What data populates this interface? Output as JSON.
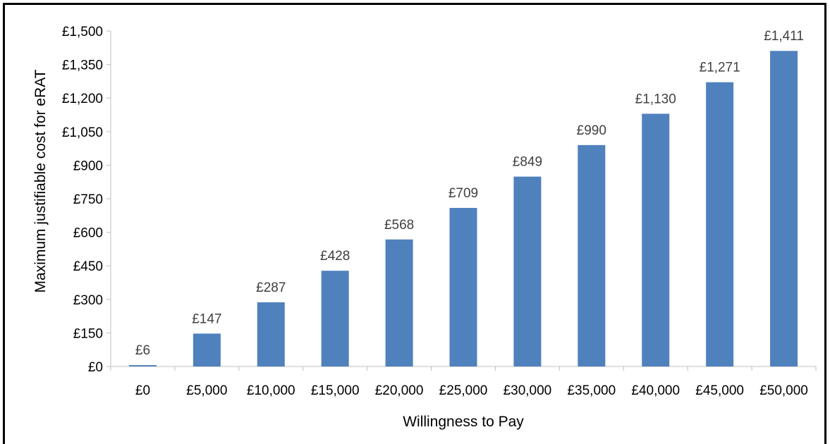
{
  "chart_data": {
    "type": "bar",
    "title": "",
    "xlabel": "Willingness to Pay",
    "ylabel": "Maximum justifiable cost for eRAT",
    "categories": [
      "£0",
      "£5,000",
      "£10,000",
      "£15,000",
      "£20,000",
      "£25,000",
      "£30,000",
      "£35,000",
      "£40,000",
      "£45,000",
      "£50,000"
    ],
    "values": [
      6,
      147,
      287,
      428,
      568,
      709,
      849,
      990,
      1130,
      1271,
      1411
    ],
    "data_labels": [
      "£6",
      "£147",
      "£287",
      "£428",
      "£568",
      "£709",
      "£849",
      "£990",
      "£1,130",
      "£1,271",
      "£1,411"
    ],
    "ylim": [
      0,
      1500
    ],
    "y_ticks": [
      0,
      150,
      300,
      450,
      600,
      750,
      900,
      1050,
      1200,
      1350,
      1500
    ],
    "y_tick_labels": [
      "£0",
      "£150",
      "£300",
      "£450",
      "£600",
      "£750",
      "£900",
      "£1,050",
      "£1,200",
      "£1,350",
      "£1,500"
    ],
    "grid": false,
    "legend": "none",
    "bar_color": "#4F81BD",
    "axis_color": "#BFBFBF"
  }
}
